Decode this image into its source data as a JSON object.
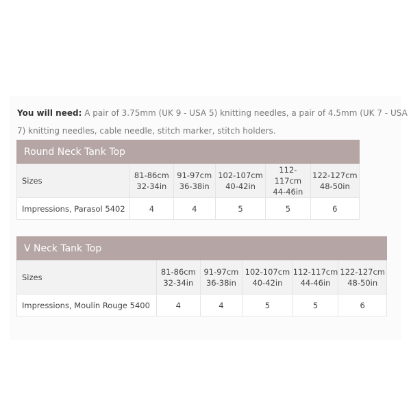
{
  "intro": {
    "label": "You will need:",
    "text": " A pair of 3.75mm (UK 9 - USA 5) knitting needles, a pair of 4.5mm (UK 7 - USA 7) knitting needles, cable needle, stitch marker, stitch holders."
  },
  "tables": [
    {
      "title": "Round Neck Tank Top",
      "sizes_label": "Sizes",
      "sizes": [
        [
          "81-86cm",
          "32-34in"
        ],
        [
          "91-97cm",
          "36-38in"
        ],
        [
          "102-107cm",
          "40-42in"
        ],
        [
          "112-117cm",
          "44-46in"
        ],
        [
          "122-127cm",
          "48-50in"
        ]
      ],
      "yarn": "Impressions, Parasol 5402",
      "values": [
        "4",
        "4",
        "5",
        "5",
        "6"
      ]
    },
    {
      "title": "V Neck Tank Top",
      "sizes_label": "Sizes",
      "sizes": [
        [
          "81-86cm",
          "32-34in"
        ],
        [
          "91-97cm",
          "36-38in"
        ],
        [
          "102-107cm",
          "40-42in"
        ],
        [
          "112-117cm",
          "44-46in"
        ],
        [
          "122-127cm",
          "48-50in"
        ]
      ],
      "yarn": "Impressions, Moulin Rouge 5400",
      "values": [
        "4",
        "4",
        "5",
        "5",
        "6"
      ]
    }
  ],
  "colors": {
    "header": "#b5a6a5",
    "sizes_row": "#f2f2f2"
  }
}
